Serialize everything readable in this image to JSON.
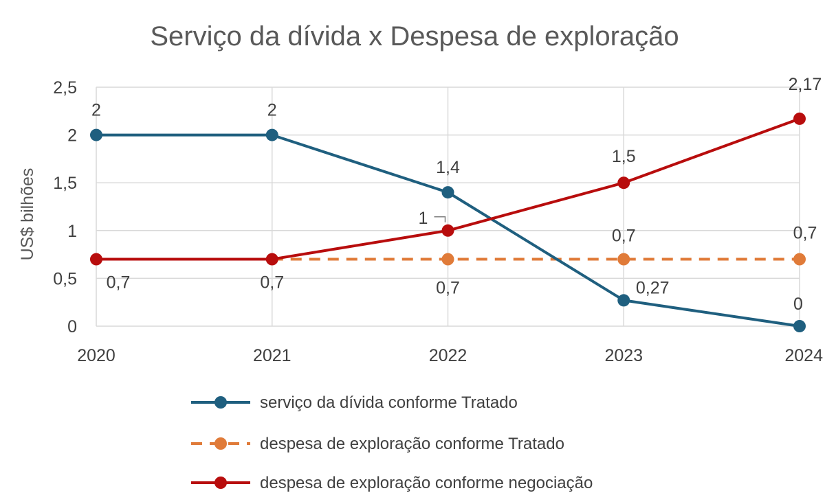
{
  "chart_data": {
    "type": "line",
    "title": "Serviço da dívida x Despesa de exploração",
    "xlabel": "",
    "ylabel": "US$ bilhões",
    "categories": [
      "2020",
      "2021",
      "2022",
      "2023",
      "2024"
    ],
    "ylim": [
      0,
      2.5
    ],
    "yticks": [
      0,
      0.5,
      1,
      1.5,
      2,
      2.5
    ],
    "ytick_labels": [
      "0",
      "0,5",
      "1",
      "1,5",
      "2",
      "2,5"
    ],
    "grid": true,
    "legend_position": "bottom",
    "series": [
      {
        "name": "serviço da dívida conforme Tratado",
        "color": "#1f5f7f",
        "style": "solid",
        "values": [
          2,
          2,
          1.4,
          0.27,
          0
        ],
        "labels": [
          "2",
          "2",
          "1,4",
          "0,27",
          "0"
        ]
      },
      {
        "name": "despesa de exploração conforme Tratado",
        "color": "#e07b39",
        "style": "dashed",
        "values": [
          0.7,
          0.7,
          0.7,
          0.7,
          0.7
        ],
        "labels": [
          "0,7",
          "0,7",
          "0,7",
          "0,7",
          "0,7"
        ]
      },
      {
        "name": "despesa de exploração conforme negociação",
        "color": "#b80d0d",
        "style": "solid",
        "values": [
          0.7,
          0.7,
          1,
          1.5,
          2.17
        ],
        "labels": [
          "0,7",
          "0,7",
          "1",
          "1,5",
          "2,17"
        ]
      }
    ]
  }
}
